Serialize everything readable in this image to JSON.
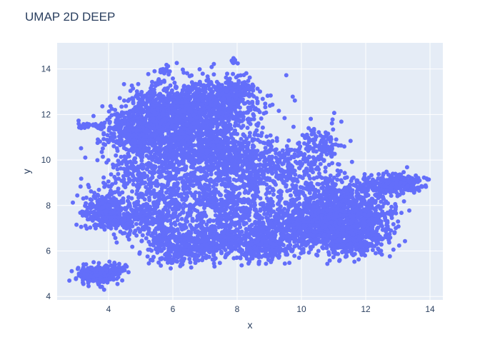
{
  "chart_data": {
    "type": "scatter",
    "title": "UMAP 2D DEEP",
    "xlabel": "x",
    "ylabel": "y",
    "xlim": [
      2.4,
      14.4
    ],
    "ylim": [
      3.85,
      15.15
    ],
    "xticks": [
      4,
      6,
      8,
      10,
      12,
      14
    ],
    "yticks": [
      4,
      6,
      8,
      10,
      12,
      14
    ],
    "grid": true,
    "colors": {
      "marker": "#636efa",
      "plot_background": "#e5ecf6",
      "grid": "#ffffff",
      "text": "#2a3f5f"
    },
    "series": [
      {
        "clusters": [
          {
            "center": [
              3.6,
              4.95
            ],
            "spread": [
              0.28,
              0.18
            ],
            "count": 260
          },
          {
            "center": [
              4.1,
              5.2
            ],
            "spread": [
              0.25,
              0.12
            ],
            "count": 60
          },
          {
            "center": [
              3.95,
              7.7
            ],
            "spread": [
              0.35,
              0.35
            ],
            "count": 300
          },
          {
            "center": [
              4.6,
              7.3
            ],
            "spread": [
              0.35,
              0.25
            ],
            "count": 80
          },
          {
            "center": [
              3.6,
              11.5
            ],
            "spread": [
              0.3,
              0.07
            ],
            "count": 40
          },
          {
            "center": [
              4.8,
              11.3
            ],
            "spread": [
              0.5,
              0.5
            ],
            "count": 320
          },
          {
            "center": [
              5.7,
              12.2
            ],
            "spread": [
              0.6,
              0.6
            ],
            "count": 500
          },
          {
            "center": [
              7.0,
              12.3
            ],
            "spread": [
              0.8,
              0.7
            ],
            "count": 650
          },
          {
            "center": [
              7.8,
              12.9
            ],
            "spread": [
              0.5,
              0.4
            ],
            "count": 150
          },
          {
            "center": [
              6.0,
              10.5
            ],
            "spread": [
              0.9,
              0.7
            ],
            "count": 500
          },
          {
            "center": [
              7.6,
              10.4
            ],
            "spread": [
              0.7,
              0.6
            ],
            "count": 350
          },
          {
            "center": [
              5.2,
              9.0
            ],
            "spread": [
              0.7,
              0.8
            ],
            "count": 280
          },
          {
            "center": [
              6.8,
              8.5
            ],
            "spread": [
              0.8,
              0.7
            ],
            "count": 300
          },
          {
            "center": [
              8.3,
              9.3
            ],
            "spread": [
              0.6,
              0.7
            ],
            "count": 250
          },
          {
            "center": [
              5.4,
              7.4
            ],
            "spread": [
              0.6,
              0.5
            ],
            "count": 200
          },
          {
            "center": [
              6.2,
              6.1
            ],
            "spread": [
              0.5,
              0.35
            ],
            "count": 300
          },
          {
            "center": [
              7.2,
              6.5
            ],
            "spread": [
              0.6,
              0.45
            ],
            "count": 300
          },
          {
            "center": [
              7.6,
              7.7
            ],
            "spread": [
              0.5,
              0.5
            ],
            "count": 150
          },
          {
            "center": [
              8.8,
              6.2
            ],
            "spread": [
              0.5,
              0.35
            ],
            "count": 250
          },
          {
            "center": [
              9.4,
              7.0
            ],
            "spread": [
              0.7,
              0.5
            ],
            "count": 350
          },
          {
            "center": [
              9.3,
              9.8
            ],
            "spread": [
              0.6,
              0.6
            ],
            "count": 220
          },
          {
            "center": [
              10.5,
              10.6
            ],
            "spread": [
              0.4,
              0.5
            ],
            "count": 130
          },
          {
            "center": [
              10.5,
              8.5
            ],
            "spread": [
              0.6,
              0.6
            ],
            "count": 220
          },
          {
            "center": [
              10.6,
              7.2
            ],
            "spread": [
              0.6,
              0.5
            ],
            "count": 450
          },
          {
            "center": [
              11.4,
              6.6
            ],
            "spread": [
              0.5,
              0.45
            ],
            "count": 400
          },
          {
            "center": [
              11.4,
              8.0
            ],
            "spread": [
              0.5,
              0.5
            ],
            "count": 250
          },
          {
            "center": [
              12.2,
              7.3
            ],
            "spread": [
              0.4,
              0.6
            ],
            "count": 250
          },
          {
            "center": [
              12.6,
              8.9
            ],
            "spread": [
              0.5,
              0.22
            ],
            "count": 260
          },
          {
            "center": [
              13.3,
              9.0
            ],
            "spread": [
              0.3,
              0.15
            ],
            "count": 110
          },
          {
            "center": [
              8.1,
              13.0
            ],
            "spread": [
              0.2,
              0.2
            ],
            "count": 30
          },
          {
            "center": [
              7.9,
              14.35
            ],
            "spread": [
              0.06,
              0.08
            ],
            "count": 12
          },
          {
            "center": [
              5.7,
              13.9
            ],
            "spread": [
              0.12,
              0.1
            ],
            "count": 15
          }
        ]
      }
    ]
  }
}
